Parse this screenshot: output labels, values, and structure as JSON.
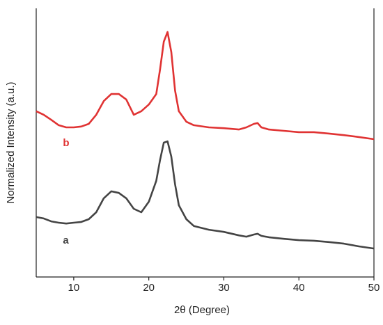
{
  "chart_data": {
    "type": "line",
    "xlabel": "2θ (Degree)",
    "ylabel": "Normalized Intensity (a.u.)",
    "x": [
      5,
      6,
      7,
      8,
      9,
      10,
      11,
      12,
      13,
      14,
      15,
      16,
      17,
      18,
      19,
      20,
      21,
      21.5,
      22,
      22.5,
      23,
      23.5,
      24,
      25,
      26,
      28,
      30,
      32,
      33,
      34,
      34.5,
      35,
      36,
      38,
      40,
      42,
      44,
      46,
      48,
      50
    ],
    "series": [
      {
        "name": "b",
        "color": "#e03333",
        "values": [
          61.7,
          60.4,
          58.5,
          56.5,
          55.7,
          55.7,
          56.0,
          57.0,
          60.4,
          65.5,
          68.1,
          68.1,
          66.1,
          60.4,
          61.7,
          64.2,
          68.1,
          77.2,
          87.6,
          91.2,
          83.7,
          69.4,
          61.7,
          57.8,
          56.5,
          55.7,
          55.4,
          54.9,
          55.7,
          57.0,
          57.3,
          55.7,
          54.9,
          54.4,
          53.9,
          53.9,
          53.4,
          52.8,
          52.1,
          51.3
        ]
      },
      {
        "name": "a",
        "color": "#444444",
        "values": [
          22.3,
          21.8,
          20.7,
          20.2,
          19.9,
          20.2,
          20.5,
          21.5,
          24.1,
          29.3,
          31.9,
          31.3,
          29.3,
          25.4,
          24.1,
          28.0,
          35.8,
          43.5,
          50.0,
          50.5,
          44.8,
          34.5,
          26.7,
          21.5,
          19.0,
          17.6,
          16.8,
          15.5,
          15.0,
          15.8,
          16.1,
          15.3,
          14.8,
          14.2,
          13.7,
          13.5,
          13.0,
          12.4,
          11.4,
          10.6
        ]
      }
    ],
    "xlim": [
      5,
      50
    ],
    "xticks": [
      10,
      20,
      30,
      40,
      50
    ],
    "ylim": [
      0,
      100
    ]
  }
}
